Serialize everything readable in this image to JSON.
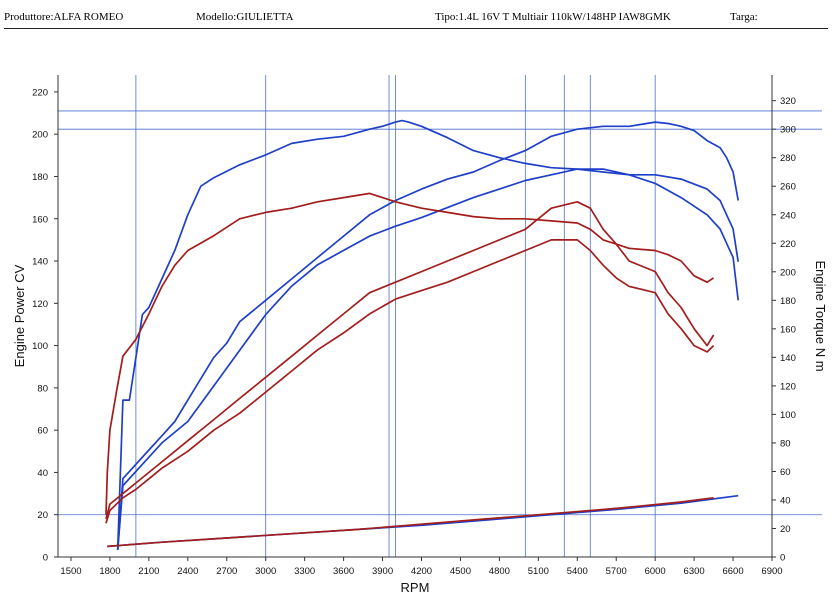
{
  "header": {
    "producer_label": "Produttore:",
    "producer_value": "ALFA ROMEO",
    "model_label": "Modello:",
    "model_value": "GIULIETTA",
    "type_label": "Tipo:",
    "type_value": "1.4L 16V T Multiair 110kW/148HP IAW8GMK",
    "plate_label": "Targa:"
  },
  "chart_data": {
    "type": "line",
    "title": "",
    "xlabel": "RPM",
    "ylabel_left": "Engine Power CV",
    "ylabel_right": "Engine Torque N m",
    "xlim": [
      1400,
      6900
    ],
    "ylim_left": [
      0,
      228
    ],
    "ylim_right": [
      0,
      338
    ],
    "x_ticks": [
      1500,
      1800,
      2100,
      2400,
      2700,
      3000,
      3300,
      3600,
      3900,
      4200,
      4500,
      4800,
      5100,
      5400,
      5700,
      6000,
      6300,
      6600,
      6900
    ],
    "y_ticks_left": [
      0,
      20,
      40,
      60,
      80,
      100,
      120,
      140,
      160,
      180,
      200,
      220
    ],
    "y_ticks_right": [
      0,
      20,
      40,
      60,
      80,
      100,
      120,
      140,
      160,
      180,
      200,
      220,
      240,
      260,
      280,
      300,
      320
    ],
    "grid": "partial",
    "colors": {
      "blue": "#1f3fc8",
      "red": "#a31d1d",
      "grid": "#4a6fd0",
      "axis": "#333333"
    },
    "reference_lines": {
      "vertical_rpm": [
        2000,
        3000,
        4000,
        5000,
        5500,
        6000,
        5300,
        3950
      ],
      "horizontal_power": [
        211,
        20
      ],
      "horizontal_torque": [
        300
      ]
    },
    "series": [
      {
        "axis": "right",
        "color": "blue",
        "x": [
          1860,
          1900,
          1950,
          2000,
          2050,
          2100,
          2200,
          2300,
          2400,
          2500,
          2600,
          2800,
          3000,
          3200,
          3400,
          3600,
          3800,
          3900,
          4000,
          4050,
          4100,
          4200,
          4400,
          4600,
          4800,
          5000,
          5200,
          5400,
          5600,
          5800,
          6000,
          6200,
          6400,
          6500,
          6550,
          6600,
          6640
        ],
        "y": [
          5,
          110,
          110,
          140,
          170,
          175,
          195,
          215,
          240,
          260,
          266,
          275,
          282,
          290,
          293,
          295,
          300,
          302,
          305,
          306,
          305,
          302,
          294,
          285,
          280,
          276,
          273,
          272,
          270,
          268,
          268,
          265,
          258,
          250,
          240,
          230,
          207
        ]
      },
      {
        "axis": "right",
        "color": "blue",
        "x": [
          1860,
          1900,
          2000,
          2100,
          2200,
          2300,
          2400,
          2500,
          2600,
          2700,
          2800,
          3000,
          3200,
          3400,
          3600,
          3800,
          4000,
          4200,
          4400,
          4600,
          4800,
          5000,
          5200,
          5400,
          5600,
          5800,
          6000,
          6100,
          6200,
          6300,
          6400,
          6500,
          6550,
          6600,
          6640
        ],
        "y": [
          5,
          55,
          65,
          75,
          85,
          95,
          110,
          125,
          140,
          150,
          165,
          180,
          195,
          210,
          225,
          240,
          250,
          258,
          265,
          270,
          278,
          285,
          295,
          300,
          302,
          302,
          305,
          304,
          302,
          299,
          292,
          287,
          280,
          270,
          250
        ]
      },
      {
        "axis": "right",
        "color": "blue",
        "x": [
          1860,
          1900,
          2000,
          2100,
          2200,
          2400,
          2600,
          2800,
          3000,
          3200,
          3400,
          3600,
          3800,
          4000,
          4200,
          4400,
          4600,
          4800,
          5000,
          5200,
          5400,
          5600,
          5800,
          6000,
          6200,
          6400,
          6500,
          6550,
          6600,
          6640
        ],
        "y": [
          5,
          50,
          60,
          70,
          80,
          95,
          120,
          145,
          170,
          190,
          205,
          215,
          225,
          232,
          238,
          245,
          252,
          258,
          264,
          268,
          272,
          272,
          268,
          262,
          252,
          240,
          230,
          220,
          210,
          180
        ]
      },
      {
        "axis": "left",
        "color": "red",
        "x": [
          1770,
          1780,
          1800,
          1850,
          1900,
          2000,
          2100,
          2200,
          2300,
          2400,
          2600,
          2800,
          3000,
          3200,
          3400,
          3600,
          3800,
          3900,
          4000,
          4200,
          4400,
          4600,
          4800,
          5000,
          5200,
          5400,
          5500,
          5600,
          5700,
          5800,
          6000,
          6100,
          6200,
          6300,
          6400,
          6450
        ],
        "y": [
          20,
          40,
          60,
          78,
          95,
          103,
          115,
          128,
          138,
          145,
          152,
          160,
          163,
          165,
          168,
          170,
          172,
          170,
          168,
          165,
          163,
          161,
          160,
          160,
          159,
          158,
          155,
          150,
          148,
          146,
          145,
          143,
          140,
          133,
          130,
          132
        ]
      },
      {
        "axis": "left",
        "color": "red",
        "x": [
          1770,
          1800,
          1900,
          2000,
          2100,
          2200,
          2400,
          2600,
          2800,
          3000,
          3200,
          3400,
          3600,
          3800,
          4000,
          4200,
          4400,
          4600,
          4800,
          5000,
          5200,
          5400,
          5500,
          5600,
          5700,
          5800,
          6000,
          6100,
          6200,
          6300,
          6400,
          6450
        ],
        "y": [
          18,
          25,
          30,
          35,
          40,
          45,
          55,
          65,
          75,
          85,
          95,
          105,
          115,
          125,
          130,
          135,
          140,
          145,
          150,
          155,
          165,
          168,
          165,
          155,
          148,
          140,
          135,
          125,
          118,
          108,
          100,
          105
        ]
      },
      {
        "axis": "left",
        "color": "red",
        "x": [
          1770,
          1800,
          1900,
          2000,
          2100,
          2200,
          2400,
          2600,
          2800,
          3000,
          3200,
          3400,
          3600,
          3800,
          4000,
          4200,
          4400,
          4600,
          4800,
          5000,
          5200,
          5400,
          5500,
          5600,
          5700,
          5800,
          6000,
          6100,
          6200,
          6300,
          6400,
          6450
        ],
        "y": [
          16,
          22,
          28,
          32,
          37,
          42,
          50,
          60,
          68,
          78,
          88,
          98,
          106,
          115,
          122,
          126,
          130,
          135,
          140,
          145,
          150,
          150,
          145,
          138,
          132,
          128,
          125,
          115,
          108,
          100,
          97,
          100
        ]
      },
      {
        "axis": "left",
        "color": "blue",
        "x": [
          1780,
          2200,
          2700,
          3200,
          3700,
          4200,
          4700,
          5200,
          5700,
          6200,
          6640
        ],
        "y": [
          5,
          7,
          9,
          11,
          13,
          15,
          17.5,
          20,
          22.5,
          25.5,
          29
        ]
      },
      {
        "axis": "left",
        "color": "red",
        "x": [
          1780,
          2200,
          2700,
          3200,
          3700,
          4200,
          4700,
          5200,
          5700,
          6200,
          6450
        ],
        "y": [
          5,
          7,
          9,
          11,
          13,
          15.5,
          18,
          20.5,
          23,
          26,
          28
        ]
      }
    ]
  }
}
